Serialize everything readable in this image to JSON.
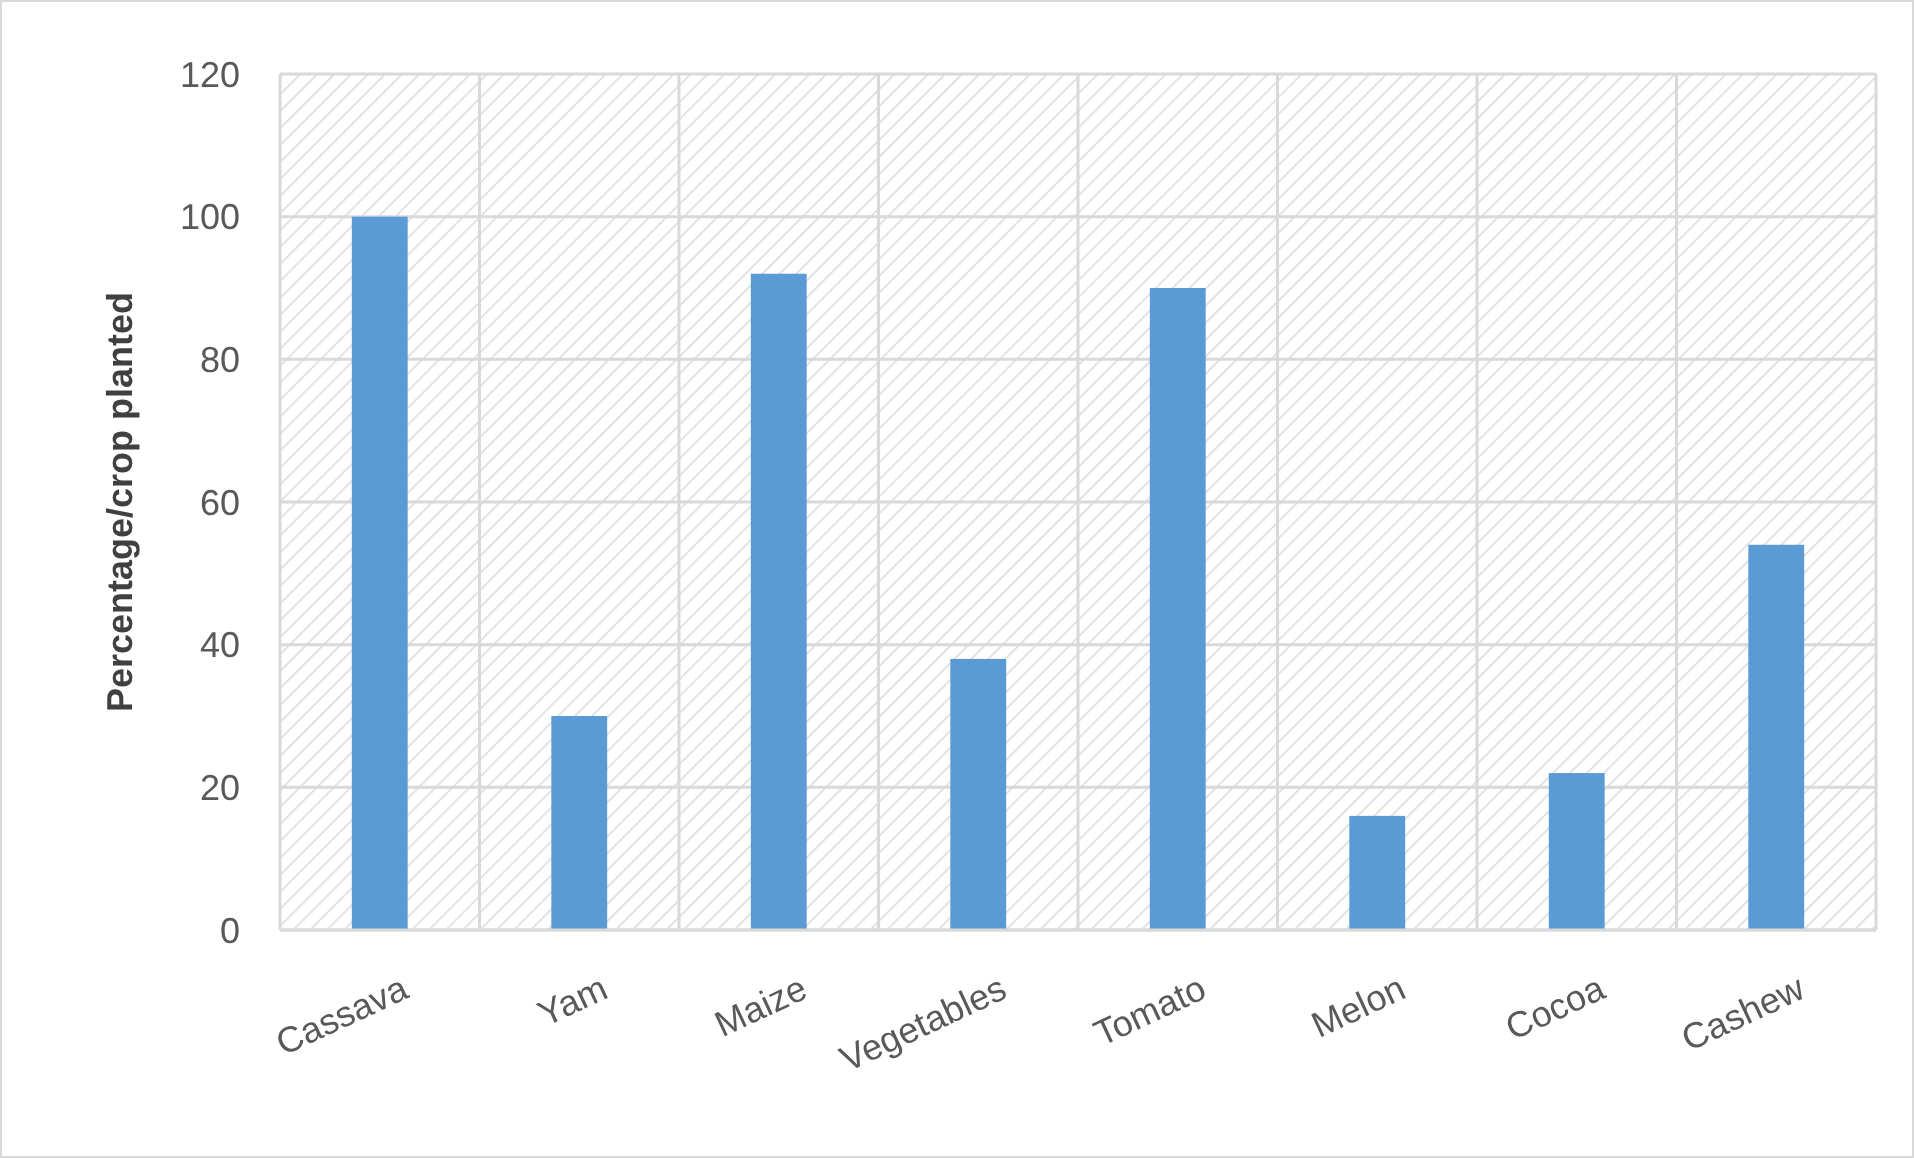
{
  "chart_data": {
    "type": "bar",
    "ylabel": "Percentage/crop planted",
    "categories": [
      "Cassava",
      "Yam",
      "Maize",
      "Vegetables",
      "Tomato",
      "Melon",
      "Cocoa",
      "Cashew"
    ],
    "values": [
      100,
      30,
      92,
      38,
      90,
      16,
      22,
      54
    ],
    "color": "#5b9bd5",
    "ylim": [
      0,
      120
    ],
    "yticks": [
      0,
      20,
      40,
      60,
      80,
      100,
      120
    ],
    "grid": true
  }
}
